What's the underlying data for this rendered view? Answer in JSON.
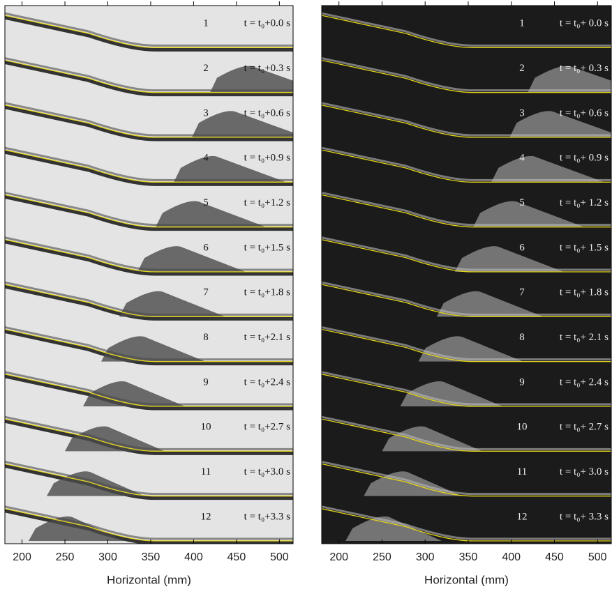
{
  "chart_data": [
    {
      "type": "image-strips",
      "background": "#e4e4e4",
      "curve_color": "#e6d619",
      "pile_color": "#4a4a4a",
      "xlabel": "Horizontal (mm)",
      "xlim": [
        180,
        516
      ],
      "xticks": [
        200,
        250,
        300,
        350,
        400,
        450,
        500
      ],
      "frame_labels": [
        "1",
        "2",
        "3",
        "4",
        "5",
        "6",
        "7",
        "8",
        "9",
        "10",
        "11",
        "12"
      ],
      "time_labels": [
        "t = t₀+0.0 s",
        "t = t₀+0.3 s",
        "t = t₀+0.6 s",
        "t = t₀+0.9 s",
        "t = t₀+1.2 s",
        "t = t₀+1.5 s",
        "t = t₀+1.8 s",
        "t = t₀+2.1 s",
        "t = t₀+2.4 s",
        "t = t₀+2.7 s",
        "t = t₀+3.0 s",
        "t = t₀+3.3 s"
      ]
    },
    {
      "type": "image-strips",
      "background": "#1b1b1b",
      "curve_color": "#e6d619",
      "pile_color": "#bdbdbd",
      "xlabel": "Horizontal (mm)",
      "xlim": [
        180,
        516
      ],
      "xticks": [
        200,
        250,
        300,
        350,
        400,
        450,
        500
      ],
      "frame_labels": [
        "1",
        "2",
        "3",
        "4",
        "5",
        "6",
        "7",
        "8",
        "9",
        "10",
        "11",
        "12"
      ],
      "time_labels": [
        "t = t₀+ 0.0 s",
        "t = t₀+ 0.3 s",
        "t = t₀+ 0.6 s",
        "t = t₀+ 0.9 s",
        "t = t₀+ 1.2 s",
        "t = t₀+ 1.5 s",
        "t = t₀+ 1.8 s",
        "t = t₀+ 2.1 s",
        "t = t₀+ 2.4 s",
        "t = t₀+ 2.7 s",
        "t = t₀+ 3.0 s",
        "t = t₀+ 3.3 s"
      ]
    }
  ]
}
